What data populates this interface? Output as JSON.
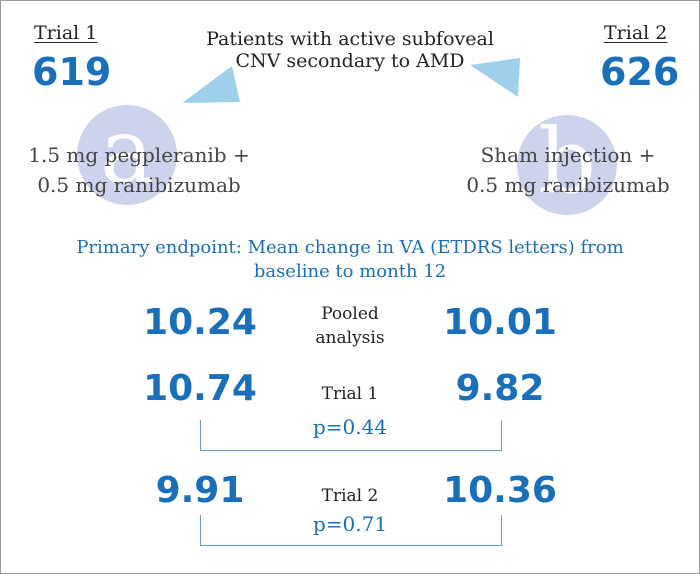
{
  "colors": {
    "accent_blue": "#1a6fba",
    "triangle_blue": "#9ed0ec",
    "circle_lavender": "#cdd3ec"
  },
  "header": {
    "population_line1": "Patients with active subfoveal",
    "population_line2": "CNV secondary to AMD"
  },
  "trial1": {
    "label": "Trial 1",
    "count": "619"
  },
  "trial2": {
    "label": "Trial 2",
    "count": "626"
  },
  "arms": {
    "left": {
      "letter": "a",
      "line1": "1.5 mg pegpleranib +",
      "line2": "0.5 mg ranibizumab"
    },
    "right": {
      "letter": "b",
      "line1": "Sham injection +",
      "line2": "0.5 mg ranibizumab"
    }
  },
  "endpoint": {
    "line1": "Primary endpoint: Mean change in VA (ETDRS letters) from",
    "line2": "baseline to month 12"
  },
  "results": {
    "pooled": {
      "label_line1": "Pooled",
      "label_line2": "analysis",
      "left": "10.24",
      "right": "10.01"
    },
    "trial1": {
      "label": "Trial 1",
      "left": "10.74",
      "right": "9.82",
      "p": "p=0.44"
    },
    "trial2": {
      "label": "Trial 2",
      "left": "9.91",
      "right": "10.36",
      "p": "p=0.71"
    }
  }
}
